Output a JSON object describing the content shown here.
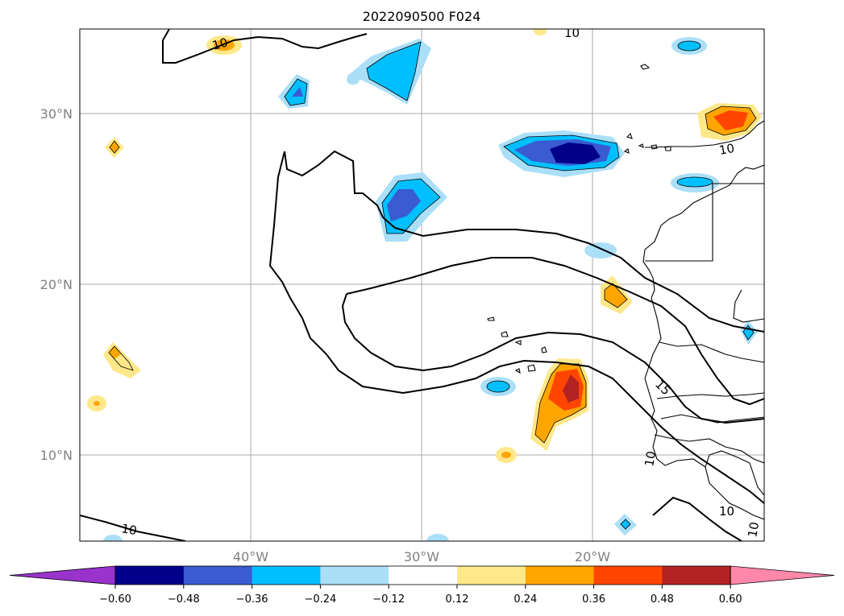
{
  "title": "2022090500 F024",
  "lat_labels": [
    "30°N",
    "20°N",
    "10°N"
  ],
  "lon_labels": [
    "40°W",
    "30°W",
    "20°W"
  ],
  "contour_labels": {
    "top_left": "10",
    "top_center": "10",
    "canary": "10",
    "bottom_left": "10",
    "west_africa_15": "15",
    "west_africa_10": "10",
    "south_east_10": "10",
    "south_east_10b": "10"
  },
  "colorbar": {
    "ticks": [
      "−0.60",
      "−0.48",
      "−0.36",
      "−0.24",
      "−0.12",
      "0.12",
      "0.24",
      "0.36",
      "0.48",
      "0.60"
    ],
    "colors": [
      "#9933cc",
      "#00008b",
      "#3a5bd1",
      "#00bfff",
      "#aadff7",
      "#ffffff",
      "#ffe88a",
      "#ffa500",
      "#ff4500",
      "#b22222",
      "#ff88aa"
    ]
  },
  "palette": {
    "neg_06": "#00008b",
    "neg_048": "#3a5bd1",
    "neg_036": "#00bfff",
    "neg_024": "#aadff7",
    "pos_024": "#ffe88a",
    "pos_036": "#ffa500",
    "pos_048": "#ff4500",
    "pos_06": "#b22222"
  }
}
